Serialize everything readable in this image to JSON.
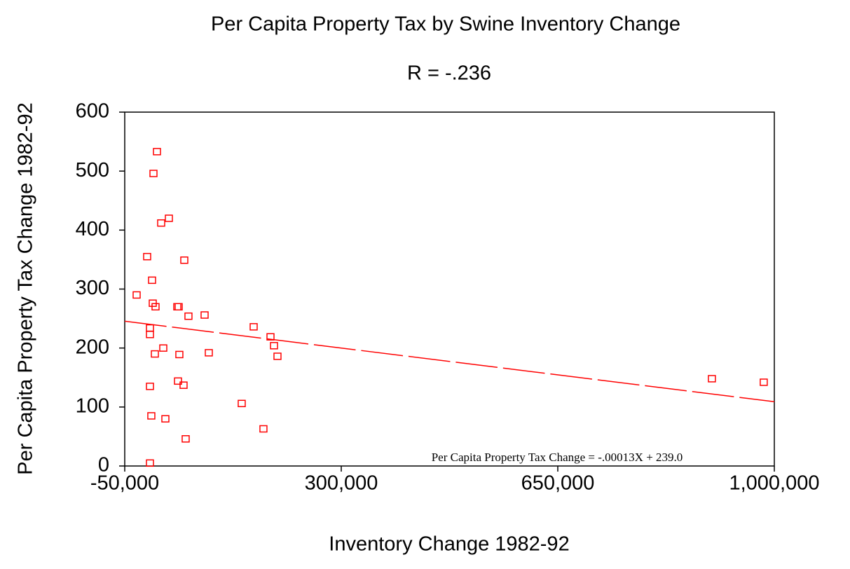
{
  "chart_data": {
    "type": "scatter",
    "title": "Per Capita Property Tax by Swine Inventory Change",
    "subtitle": "R = -.236",
    "x_label": "Inventory Change 1982-92",
    "y_label": "Per Capita Property Tax Change 1982-92",
    "annotation": "Per Capita Property Tax Change = -.00013X + 239.0",
    "regression": {
      "slope": -0.00013,
      "intercept": 239.0
    },
    "color": "#ff0000",
    "xlim": [
      -50000,
      1000000
    ],
    "ylim": [
      0,
      600
    ],
    "xticks": [
      {
        "value": -50000,
        "label": "-50,000"
      },
      {
        "value": 300000,
        "label": "300,000"
      },
      {
        "value": 650000,
        "label": "650,000"
      },
      {
        "value": 1000000,
        "label": "1,000,000"
      }
    ],
    "yticks": [
      0,
      100,
      200,
      300,
      400,
      500,
      600
    ],
    "x": [
      -30750,
      -13760,
      -5830,
      2100,
      -3560,
      8900,
      21350,
      46270,
      -4700,
      -200,
      34950,
      37200,
      53000,
      79100,
      -9230,
      -9230,
      -1300,
      12300,
      38300,
      85900,
      158400,
      185600,
      191300,
      196900,
      -9230,
      36100,
      45100,
      -7000,
      15700,
      48500,
      139100,
      174200,
      -9230,
      899100,
      982900
    ],
    "values": [
      290,
      355,
      315,
      533,
      496,
      412,
      420,
      349,
      276,
      270,
      270,
      270,
      254,
      256,
      234,
      223,
      190,
      200,
      189,
      192,
      236,
      219,
      204,
      186,
      135,
      144,
      137,
      85,
      80,
      46,
      106,
      63,
      5,
      148,
      142
    ]
  }
}
